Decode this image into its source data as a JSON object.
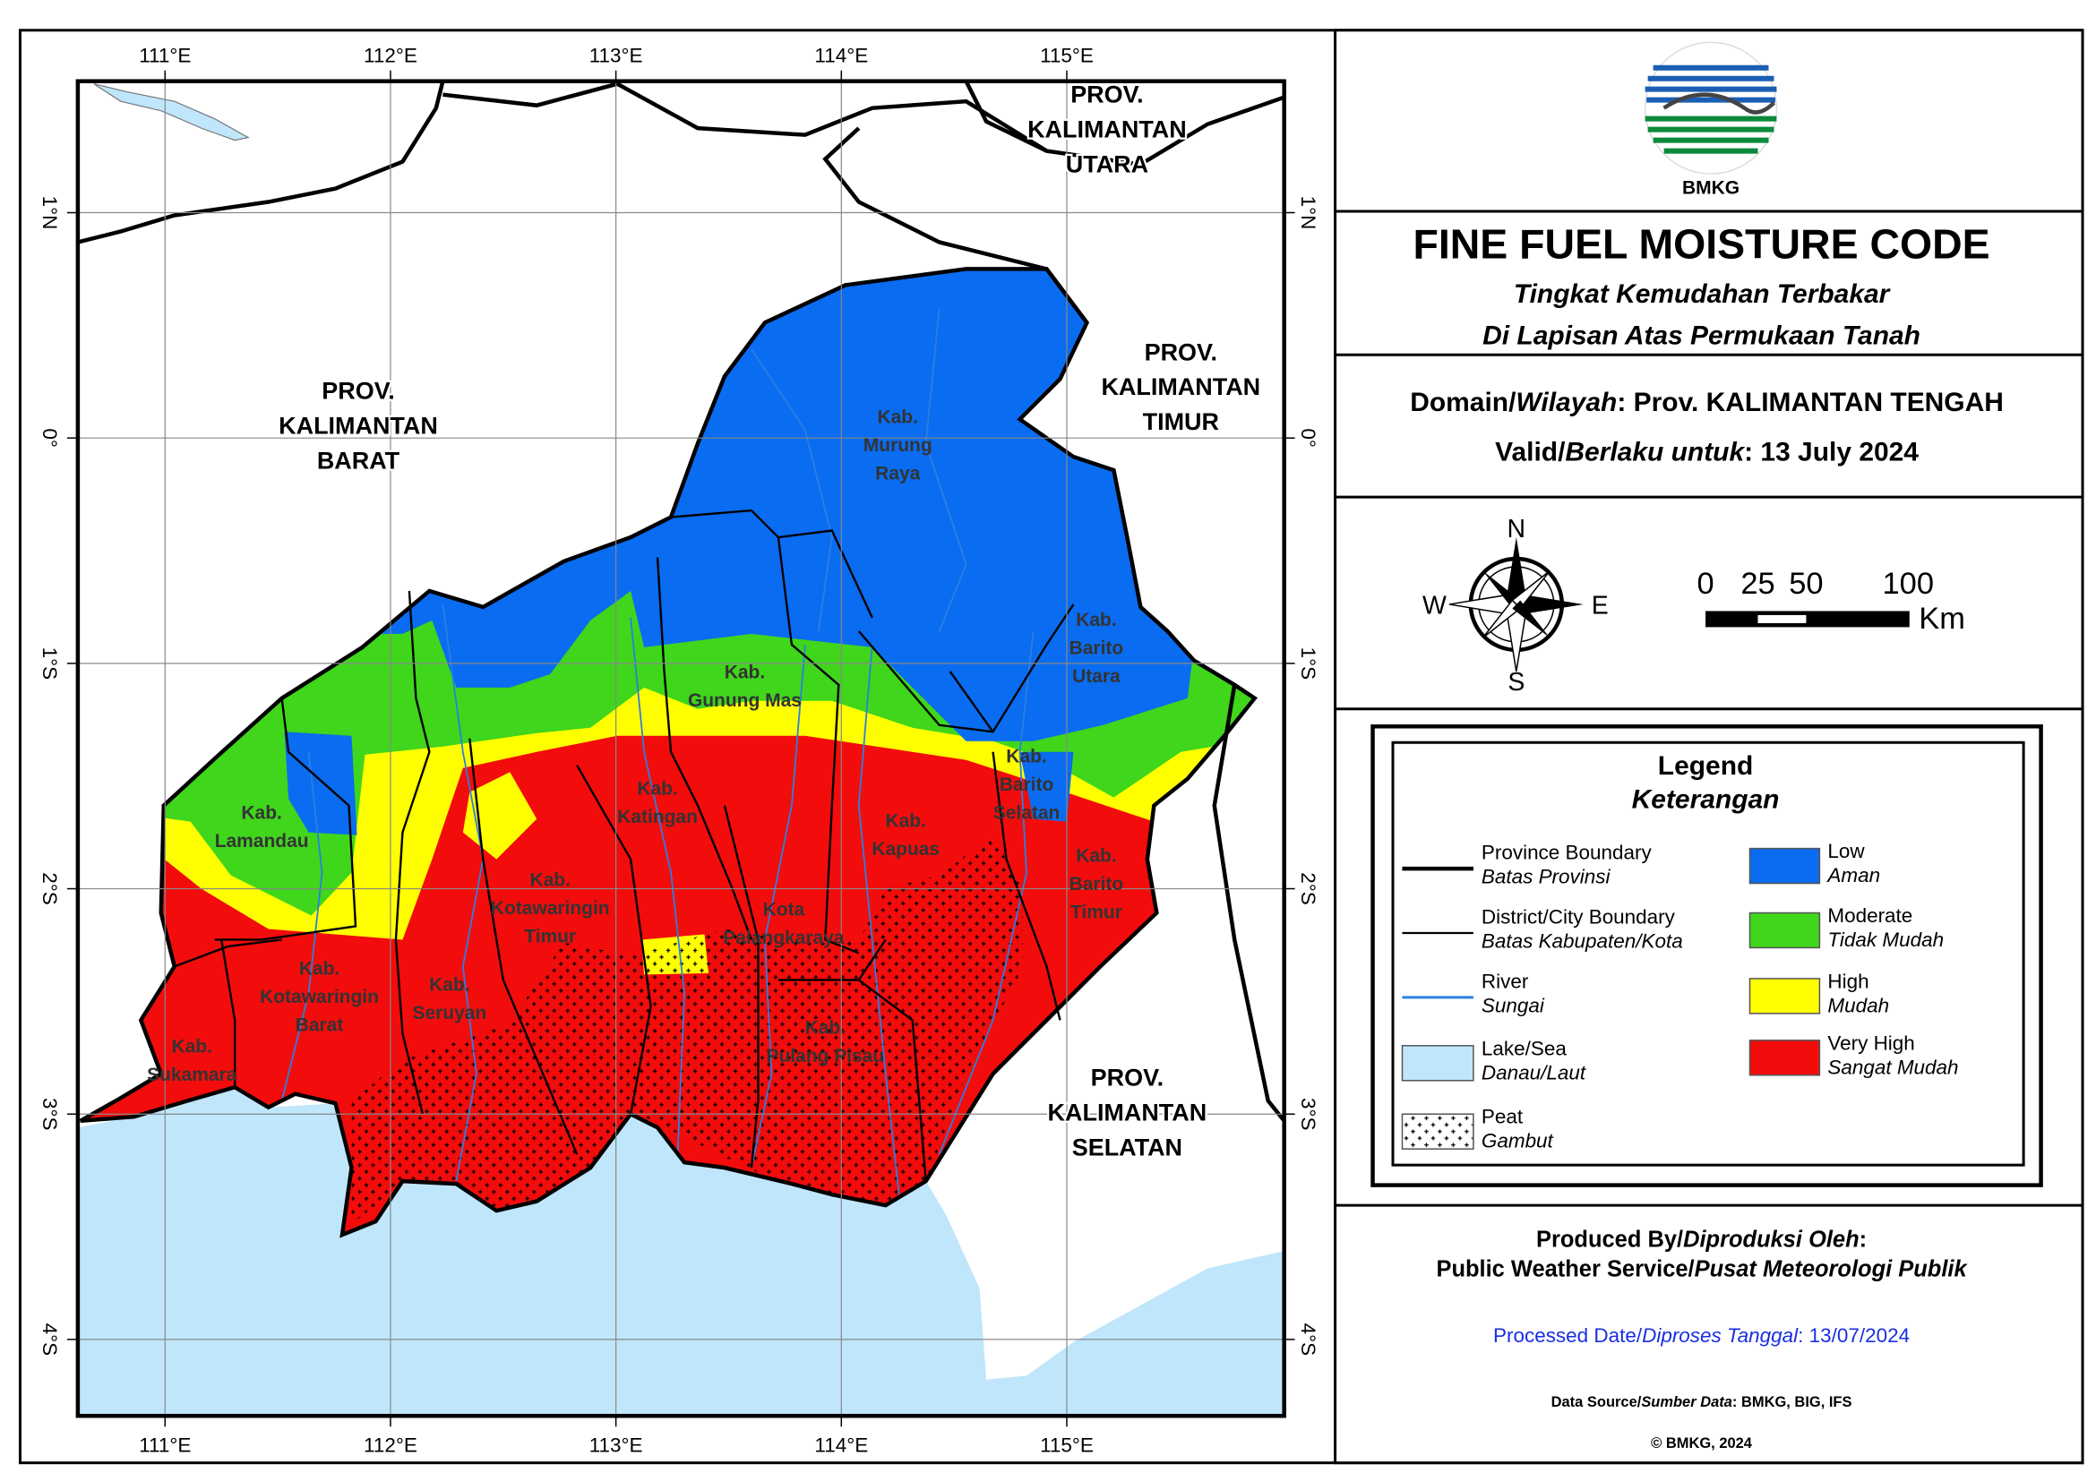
{
  "map": {
    "lon_labels": [
      "111°E",
      "112°E",
      "113°E",
      "114°E",
      "115°E"
    ],
    "lat_labels": [
      "1°N",
      "0°",
      "1°S",
      "2°S",
      "3°S",
      "4°S"
    ],
    "province_labels": [
      [
        "PROV.",
        "KALIMANTAN",
        "UTARA"
      ],
      [
        "PROV.",
        "KALIMANTAN",
        "BARAT"
      ],
      [
        "PROV.",
        "KALIMANTAN",
        "TIMUR"
      ],
      [
        "PROV.",
        "KALIMANTAN",
        "SELATAN"
      ]
    ],
    "district_labels": [
      [
        "Kab.",
        "Murung",
        "Raya"
      ],
      [
        "Kab.",
        "Gunung Mas"
      ],
      [
        "Kab.",
        "Barito",
        "Utara"
      ],
      [
        "Kab.",
        "Barito",
        "Selatan"
      ],
      [
        "Kab.",
        "Lamandau"
      ],
      [
        "Kab.",
        "Katingan"
      ],
      [
        "Kab.",
        "Kapuas"
      ],
      [
        "Kab.",
        "Barito",
        "Timur"
      ],
      [
        "Kab.",
        "Kotawaringin",
        "Timur"
      ],
      [
        "Kota",
        "Palangkaraya"
      ],
      [
        "Kab.",
        "Kotawaringin",
        "Barat"
      ],
      [
        "Kab.",
        "Seruyan"
      ],
      [
        "Kab.",
        "Pulang Pisau"
      ],
      [
        "Kab.",
        "Sukamara"
      ]
    ]
  },
  "logo": {
    "text": "BMKG"
  },
  "title": {
    "main": "FINE FUEL MOISTURE CODE",
    "sub": [
      "Tingkat Kemudahan Terbakar",
      "Di Lapisan Atas Permukaan Tanah"
    ]
  },
  "domain": {
    "en": "Domain/",
    "id": "Wilayah",
    "value": ": Prov. KALIMANTAN TENGAH"
  },
  "valid": {
    "en": "Valid/",
    "id": "Berlaku untuk",
    "value": ": 13 July 2024"
  },
  "compass": {
    "n": "N",
    "s": "S",
    "e": "E",
    "w": "W"
  },
  "scale_bar": {
    "labels": [
      "0",
      "25",
      "50",
      "100"
    ],
    "unit": "Km"
  },
  "legend": {
    "title": "Legend",
    "subtitle": "Keterangan",
    "items": [
      {
        "en": "Province Boundary",
        "id": "Batas Provinsi"
      },
      {
        "en": "District/City Boundary",
        "id": "Batas Kabupaten/Kota"
      },
      {
        "en": "River",
        "id": "Sungai"
      },
      {
        "en": "Lake/Sea",
        "id": "Danau/Laut"
      },
      {
        "en": "Peat",
        "id": "Gambut"
      }
    ],
    "classes": [
      {
        "en": "Low",
        "id": "Aman",
        "color": "#0a6cf0"
      },
      {
        "en": "Moderate",
        "id": "Tidak Mudah",
        "color": "#3fd61c"
      },
      {
        "en": "High",
        "id": "Mudah",
        "color": "#ffff00"
      },
      {
        "en": "Very High",
        "id": "Sangat Mudah",
        "color": "#f20c0c"
      }
    ]
  },
  "footer": {
    "produced": {
      "en": "Produced By/",
      "id": "Diproduksi Oleh",
      "end": ":"
    },
    "service": {
      "en": "Public Weather Service/",
      "id": "Pusat Meteorologi Publik"
    },
    "processed": {
      "en": "Processed Date/",
      "id": "Diproses Tanggal",
      "value": ": 13/07/2024"
    },
    "source": {
      "en": "Data Source/",
      "id": "Sumber Data",
      "value": ": BMKG, BIG, IFS"
    },
    "copyright": "© BMKG, 2024"
  }
}
